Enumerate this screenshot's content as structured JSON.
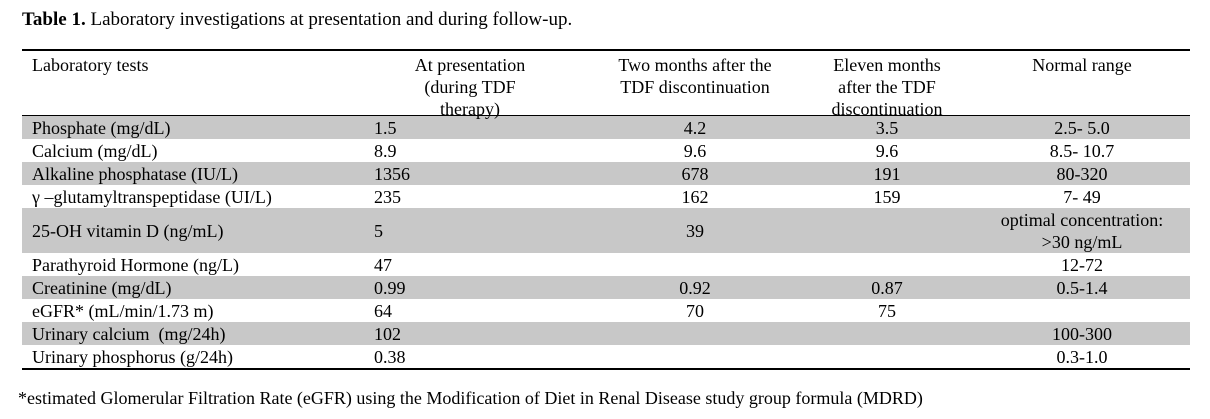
{
  "caption": {
    "label": "Table 1.",
    "text": " Laboratory investigations at presentation and during follow-up."
  },
  "table": {
    "headers": {
      "test": "Laboratory tests",
      "presentation_l1": "At presentation",
      "presentation_l2": "(during TDF",
      "presentation_l3": "therapy)",
      "two_months_l1": "Two months after the",
      "two_months_l2": "TDF discontinuation",
      "eleven_months_l1": "Eleven months",
      "eleven_months_l2": "after the TDF",
      "eleven_months_l3": "discontinuation",
      "normal": "Normal range"
    },
    "rows": [
      {
        "test": "Phosphate (mg/dL)",
        "presentation": "1.5",
        "two_months": "4.2",
        "eleven_months": "3.5",
        "normal": "2.5- 5.0"
      },
      {
        "test": "Calcium (mg/dL)",
        "presentation": "8.9",
        "two_months": "9.6",
        "eleven_months": "9.6",
        "normal": "8.5- 10.7"
      },
      {
        "test": "Alkaline phosphatase (IU/L)",
        "presentation": "1356",
        "two_months": "678",
        "eleven_months": "191",
        "normal": "80-320"
      },
      {
        "test": "γ –glutamyltranspeptidase (UI/L)",
        "presentation": "235",
        "two_months": "162",
        "eleven_months": "159",
        "normal": "7- 49"
      },
      {
        "test": "25-OH vitamin D (ng/mL)",
        "presentation": "5",
        "two_months": "39",
        "eleven_months": "",
        "normal_l1": "optimal concentration:",
        "normal_l2": ">30 ng/mL"
      },
      {
        "test": "Parathyroid Hormone (ng/L)",
        "presentation": "47",
        "two_months": "",
        "eleven_months": "",
        "normal": "12-72"
      },
      {
        "test": "Creatinine (mg/dL)",
        "presentation": "0.99",
        "two_months": "0.92",
        "eleven_months": "0.87",
        "normal": "0.5-1.4"
      },
      {
        "test": "eGFR* (mL/min/1.73 m)",
        "presentation": "64",
        "two_months": "70",
        "eleven_months": "75",
        "normal": ""
      },
      {
        "test": "Urinary calcium  (mg/24h)",
        "presentation": "102",
        "two_months": "",
        "eleven_months": "",
        "normal": "100-300"
      },
      {
        "test": "Urinary phosphorus (g/24h)",
        "presentation": "0.38",
        "two_months": "",
        "eleven_months": "",
        "normal": "0.3-1.0"
      }
    ]
  },
  "footnote": "*estimated Glomerular Filtration Rate (eGFR) using the Modification of Diet in Renal Disease study group formula (MDRD)"
}
